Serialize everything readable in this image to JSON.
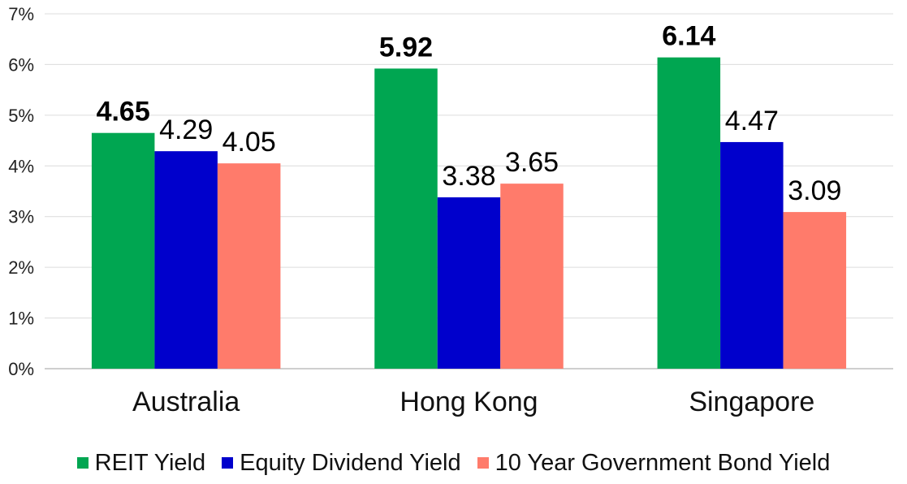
{
  "chart_data": {
    "type": "bar",
    "title": "",
    "xlabel": "",
    "ylabel": "",
    "categories": [
      "Australia",
      "Hong Kong",
      "Singapore"
    ],
    "series": [
      {
        "name": "REIT Yield",
        "color": "#00a651",
        "values": [
          4.65,
          5.92,
          6.14
        ],
        "bold_labels": true
      },
      {
        "name": "Equity Dividend Yield",
        "color": "#0000cc",
        "values": [
          4.29,
          3.38,
          4.47
        ],
        "bold_labels": false
      },
      {
        "name": "10 Year Government Bond Yield",
        "color": "#ff7b6b",
        "values": [
          4.05,
          3.65,
          3.09
        ],
        "bold_labels": false
      }
    ],
    "ylim": [
      0,
      7
    ],
    "yticks": [
      "0%",
      "1%",
      "2%",
      "3%",
      "4%",
      "5%",
      "6%",
      "7%"
    ],
    "grid": true,
    "legend": "bottom"
  }
}
